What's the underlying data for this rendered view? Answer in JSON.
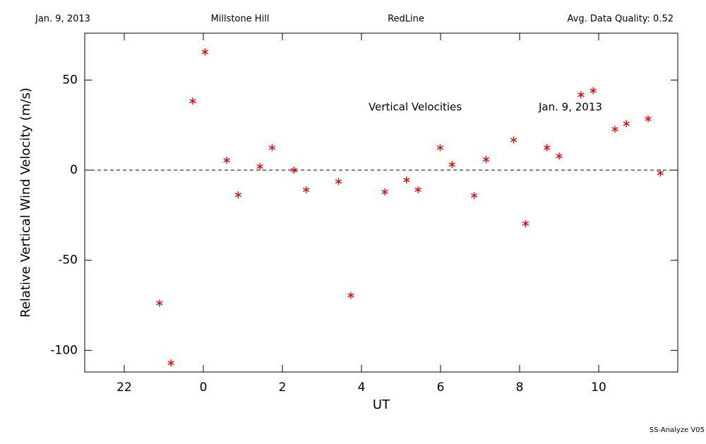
{
  "header": {
    "date": "Jan. 9, 2013",
    "site": "Millstone Hill",
    "line": "RedLine",
    "quality": "Avg. Data Quality: 0.52"
  },
  "footer": "SS-Analyze V05",
  "chart_data": {
    "type": "scatter",
    "annotations": [
      "Vertical Velocities",
      "Jan. 9, 2013"
    ],
    "x_label": "UT",
    "y_label": "Relative Vertical Wind Velocity (m/s)",
    "xlim": [
      -3,
      12
    ],
    "xticks": [
      {
        "value": -2,
        "label": "22"
      },
      0,
      2,
      4,
      6,
      8,
      10
    ],
    "ylim": [
      -112,
      76
    ],
    "yticks": [
      -100,
      -50,
      0,
      50
    ],
    "hline": 0,
    "color": "#e00000",
    "x": [
      -1.11,
      -0.82,
      -0.27,
      0.04,
      0.59,
      0.88,
      1.43,
      1.74,
      2.29,
      2.6,
      3.42,
      3.73,
      4.59,
      5.14,
      5.43,
      5.99,
      6.29,
      6.85,
      7.15,
      7.85,
      8.15,
      8.69,
      9.0,
      9.55,
      9.86,
      10.41,
      10.7,
      11.25,
      11.56
    ],
    "values": [
      -73.8,
      -107,
      38.3,
      65.6,
      5.5,
      -13.7,
      2.0,
      12.5,
      0,
      -10.9,
      -6.3,
      -69.5,
      -12.1,
      -5.5,
      -10.9,
      12.5,
      3.1,
      -14.1,
      5.9,
      16.8,
      -29.7,
      12.5,
      7.8,
      41.8,
      44.1,
      22.7,
      25.8,
      28.5,
      -1.6
    ]
  }
}
